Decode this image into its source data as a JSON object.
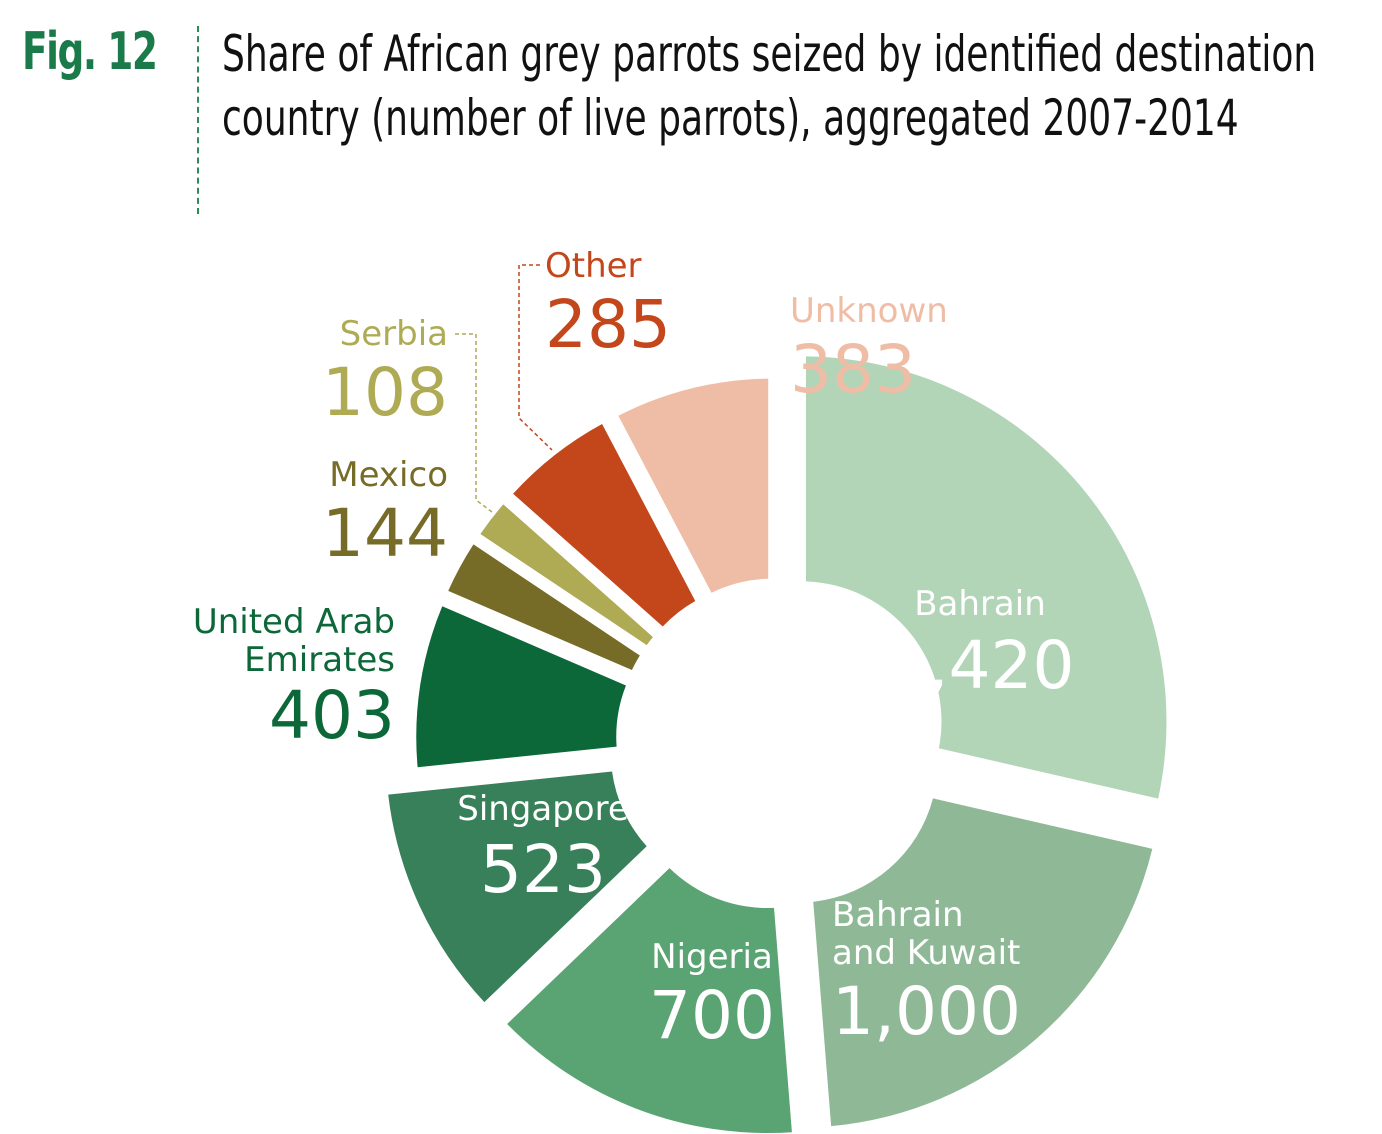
{
  "figure": {
    "label": "Fig. 12",
    "title": "Share of African grey parrots seized by identified destination country (number of live parrots), aggregated 2007-2014"
  },
  "chart_data": {
    "type": "pie",
    "style": "donut",
    "title": "Share of African grey parrots seized by identified destination country (number of live parrots), aggregated 2007-2014",
    "slices": [
      {
        "label": "Bahrain",
        "value": 1420,
        "display": "1,420",
        "color": "#b2d5b8",
        "text_color": "#ffffff"
      },
      {
        "label": "Bahrain and Kuwait",
        "value": 1000,
        "display": "1,000",
        "color": "#8fb996",
        "text_color": "#ffffff"
      },
      {
        "label": "Nigeria",
        "value": 700,
        "display": "700",
        "color": "#5aa372",
        "text_color": "#ffffff"
      },
      {
        "label": "Singapore",
        "value": 523,
        "display": "523",
        "color": "#38805a",
        "text_color": "#ffffff"
      },
      {
        "label": "United Arab Emirates",
        "value": 403,
        "display": "403",
        "color": "#0c6838",
        "text_color": "#0c6838"
      },
      {
        "label": "Mexico",
        "value": 144,
        "display": "144",
        "color": "#776c27",
        "text_color": "#776c27"
      },
      {
        "label": "Serbia",
        "value": 108,
        "display": "108",
        "color": "#afab55",
        "text_color": "#afab55"
      },
      {
        "label": "Other",
        "value": 285,
        "display": "285",
        "color": "#c4461b",
        "text_color": "#c4461b"
      },
      {
        "label": "Unknown",
        "value": 383,
        "display": "383",
        "color": "#efbca6",
        "text_color": "#efbca6"
      }
    ]
  }
}
